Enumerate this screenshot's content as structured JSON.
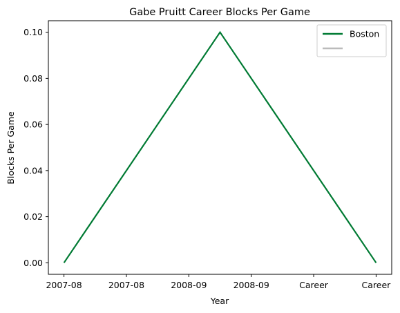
{
  "chart_data": {
    "type": "line",
    "title": "Gabe Pruitt Career Blocks Per Game",
    "xlabel": "Year",
    "ylabel": "Blocks Per Game",
    "x_tick_labels": [
      "2007-08",
      "2007-08",
      "2008-09",
      "2008-09",
      "Career",
      "Career"
    ],
    "y_ticks": [
      "0.00",
      "0.02",
      "0.04",
      "0.06",
      "0.08",
      "0.10"
    ],
    "ylim": [
      -0.005,
      0.105
    ],
    "xlim": [
      -0.1,
      2.1
    ],
    "grid": false,
    "legend_position": "top-right",
    "series": [
      {
        "name": "Boston",
        "color": "#007A33",
        "x": [
          0,
          1,
          2
        ],
        "values": [
          0.0,
          0.1,
          0.0
        ]
      },
      {
        "name": "",
        "color": "#BBBBBB",
        "x": [],
        "values": []
      }
    ]
  }
}
